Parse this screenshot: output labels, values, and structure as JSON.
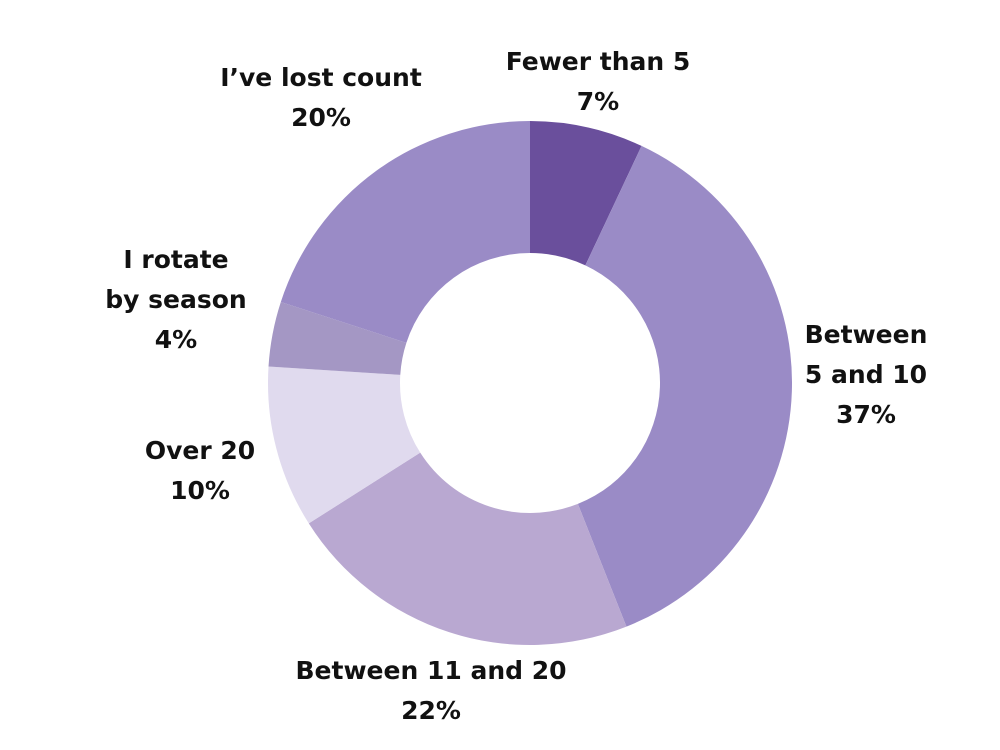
{
  "chart_data": {
    "type": "pie",
    "variant": "donut",
    "title": "",
    "slices": [
      {
        "label": [
          "Fewer than 5"
        ],
        "value": 7,
        "value_label": "7%",
        "color": "#6a4f9c"
      },
      {
        "label": [
          "Between",
          "5 and 10"
        ],
        "value": 37,
        "value_label": "37%",
        "color": "#9a8bc6"
      },
      {
        "label": [
          "Between 11 and 20"
        ],
        "value": 22,
        "value_label": "22%",
        "color": "#b9a8d1"
      },
      {
        "label": [
          "Over 20"
        ],
        "value": 10,
        "value_label": "10%",
        "color": "#e0daee"
      },
      {
        "label": [
          "I rotate",
          "by season"
        ],
        "value": 4,
        "value_label": "4%",
        "color": "#a497c4"
      },
      {
        "label": [
          "I’ve lost count"
        ],
        "value": 20,
        "value_label": "20%",
        "color": "#9a8bc6"
      }
    ]
  }
}
